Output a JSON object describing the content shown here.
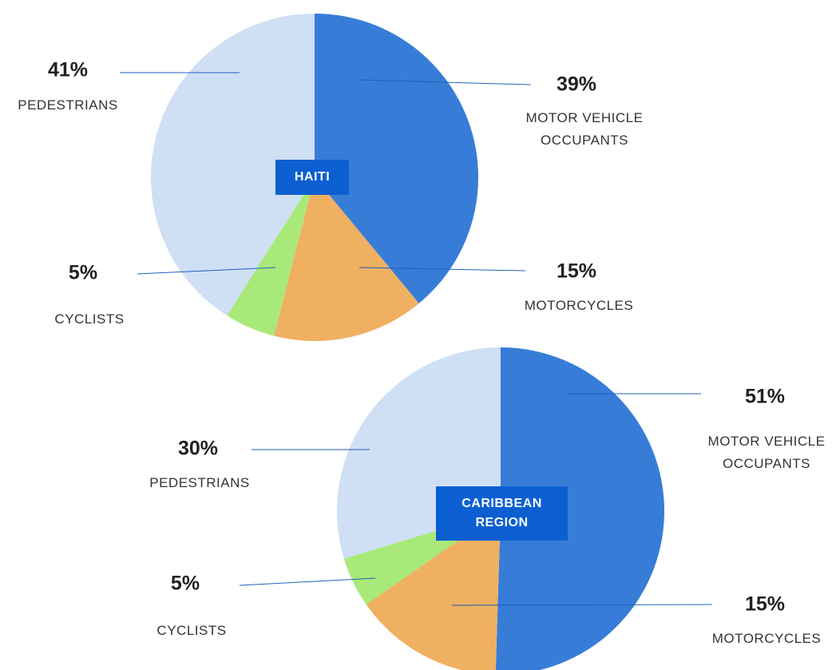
{
  "chart_data": [
    {
      "type": "pie",
      "center_label": "HAITI",
      "categories": [
        "MOTOR VEHICLE OCCUPANTS",
        "MOTORCYCLES",
        "CYCLISTS",
        "PEDESTRIANS"
      ],
      "values": [
        39,
        15,
        5,
        41
      ],
      "value_labels": [
        "39%",
        "15%",
        "5%",
        "41%"
      ],
      "colors": [
        "#377dd8",
        "#efb062",
        "#a8e97a",
        "#cfdff4"
      ]
    },
    {
      "type": "pie",
      "center_label": "CARIBBEAN REGION",
      "categories": [
        "MOTOR VEHICLE OCCUPANTS",
        "MOTORCYCLES",
        "CYCLISTS",
        "PEDESTRIANS"
      ],
      "values": [
        51,
        15,
        5,
        30
      ],
      "value_labels": [
        "51%",
        "15%",
        "5%",
        "30%"
      ],
      "colors": [
        "#377dd8",
        "#efb062",
        "#a8e97a",
        "#cfdff4"
      ]
    }
  ]
}
